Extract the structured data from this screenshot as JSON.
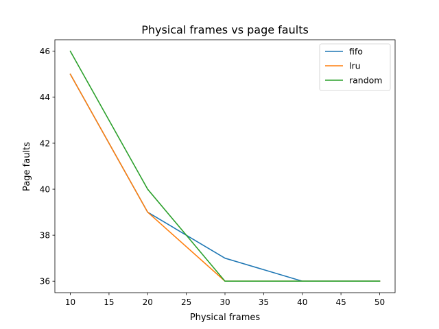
{
  "chart_data": {
    "type": "line",
    "title": "Physical frames vs page faults",
    "xlabel": "Physical frames",
    "ylabel": "Page faults",
    "x": [
      10,
      20,
      30,
      40,
      50
    ],
    "xlim": [
      8.0,
      52.0
    ],
    "ylim": [
      35.5,
      46.5
    ],
    "xticks": [
      10,
      15,
      20,
      25,
      30,
      35,
      40,
      45,
      50
    ],
    "yticks": [
      36,
      38,
      40,
      42,
      44,
      46
    ],
    "grid": false,
    "legend_position": "top-right",
    "series": [
      {
        "name": "fifo",
        "color": "#1f77b4",
        "values": [
          45,
          39,
          37,
          36,
          36
        ]
      },
      {
        "name": "lru",
        "color": "#ff7f0e",
        "values": [
          45,
          39,
          36,
          36,
          36
        ]
      },
      {
        "name": "random",
        "color": "#2ca02c",
        "values": [
          46,
          40,
          36,
          36,
          36
        ]
      }
    ]
  }
}
